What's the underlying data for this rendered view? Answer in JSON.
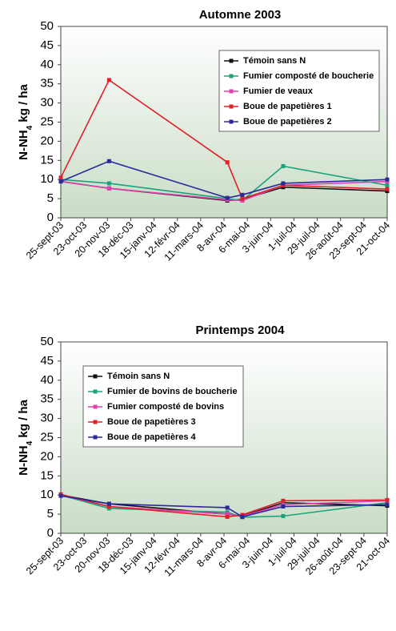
{
  "chart_data": [
    {
      "type": "line",
      "title": "Automne 2003",
      "ylabel": [
        "N-NH",
        "4",
        " kg / ha"
      ],
      "x": [
        "2003-09-25",
        "2003-11-22",
        "2004-04-12",
        "2004-04-30",
        "2004-06-18",
        "2004-10-21"
      ],
      "xlim": [
        "2003-09-25",
        "2004-10-21"
      ],
      "xticks": [
        {
          "value": "2003-09-25",
          "label": "25-sept-03"
        },
        {
          "value": "2003-10-23",
          "label": "23-oct-03"
        },
        {
          "value": "2003-11-20",
          "label": "20-nov-03"
        },
        {
          "value": "2003-12-18",
          "label": "18-déc-03"
        },
        {
          "value": "2004-01-15",
          "label": "15-janv-04"
        },
        {
          "value": "2004-02-12",
          "label": "12-févr-04"
        },
        {
          "value": "2004-03-11",
          "label": "11-mars-04"
        },
        {
          "value": "2004-04-08",
          "label": "8-avr-04"
        },
        {
          "value": "2004-05-06",
          "label": "6-mai-04"
        },
        {
          "value": "2004-06-03",
          "label": "3-juin-04"
        },
        {
          "value": "2004-07-01",
          "label": "1-juil-04"
        },
        {
          "value": "2004-07-29",
          "label": "29-juil-04"
        },
        {
          "value": "2004-08-26",
          "label": "26-août-04"
        },
        {
          "value": "2004-09-23",
          "label": "23-sept-04"
        },
        {
          "value": "2004-10-21",
          "label": "21-oct-04"
        }
      ],
      "ylim": [
        0,
        50
      ],
      "yticks": [
        0,
        5,
        10,
        15,
        20,
        25,
        30,
        35,
        40,
        45,
        50
      ],
      "legend": "upper right",
      "series": [
        {
          "name": "Témoin sans N",
          "color": "#111111",
          "values": [
            9.5,
            7.7,
            4.5,
            4.8,
            8,
            7
          ]
        },
        {
          "name": "Fumier composté de boucherie",
          "color": "#1aa37a",
          "values": [
            10,
            9,
            5,
            4.5,
            13.5,
            8.5
          ]
        },
        {
          "name": "Fumier de veaux",
          "color": "#e040b0",
          "values": [
            9.5,
            7.7,
            4.7,
            4.5,
            8.5,
            9.5
          ]
        },
        {
          "name": "Boue de papetières 1",
          "color": "#e0202a",
          "values": [
            10.5,
            36,
            14.5,
            5,
            8.5,
            7.5
          ]
        },
        {
          "name": "Boue de papetières 2",
          "color": "#2a2a9a",
          "values": [
            9.5,
            14.8,
            5.2,
            6,
            9,
            10
          ]
        }
      ]
    },
    {
      "type": "line",
      "title": "Printemps 2004",
      "ylabel": [
        "N-NH",
        "4",
        " kg / ha"
      ],
      "x": [
        "2003-09-25",
        "2003-11-22",
        "2004-04-12",
        "2004-04-30",
        "2004-06-18",
        "2004-10-21"
      ],
      "xlim": [
        "2003-09-25",
        "2004-10-21"
      ],
      "xticks": [
        {
          "value": "2003-09-25",
          "label": "25-sept-03"
        },
        {
          "value": "2003-10-23",
          "label": "23-oct-03"
        },
        {
          "value": "2003-11-20",
          "label": "20-nov-03"
        },
        {
          "value": "2003-12-18",
          "label": "18-déc-03"
        },
        {
          "value": "2004-01-15",
          "label": "15-janv-04"
        },
        {
          "value": "2004-02-12",
          "label": "12-févr-04"
        },
        {
          "value": "2004-03-11",
          "label": "11-mars-04"
        },
        {
          "value": "2004-04-08",
          "label": "8-avr-04"
        },
        {
          "value": "2004-05-06",
          "label": "6-mai-04"
        },
        {
          "value": "2004-06-03",
          "label": "3-juin-04"
        },
        {
          "value": "2004-07-01",
          "label": "1-juil-04"
        },
        {
          "value": "2004-07-29",
          "label": "29-juil-04"
        },
        {
          "value": "2004-08-26",
          "label": "26-août-04"
        },
        {
          "value": "2004-09-23",
          "label": "23-sept-04"
        },
        {
          "value": "2004-10-21",
          "label": "21-oct-04"
        }
      ],
      "ylim": [
        0,
        50
      ],
      "yticks": [
        0,
        5,
        10,
        15,
        20,
        25,
        30,
        35,
        40,
        45,
        50
      ],
      "legend": "upper left",
      "series": [
        {
          "name": "Témoin sans N",
          "color": "#111111",
          "values": [
            10,
            7.7,
            5,
            4.5,
            8,
            7.2
          ]
        },
        {
          "name": "Fumier de bovins de boucherie",
          "color": "#1aa37a",
          "values": [
            10,
            6.5,
            5.5,
            4.2,
            4.5,
            8
          ]
        },
        {
          "name": "Fumier composté de bovins",
          "color": "#e040b0",
          "values": [
            10,
            7,
            5,
            4.5,
            7.5,
            8.5
          ]
        },
        {
          "name": "Boue de papetières 3",
          "color": "#e0202a",
          "values": [
            10.2,
            7,
            4.3,
            4.8,
            8.5,
            8.7
          ]
        },
        {
          "name": "Boue de papetières 4",
          "color": "#2a2a9a",
          "values": [
            9.8,
            7.7,
            6.7,
            4.3,
            7,
            7.5
          ]
        }
      ]
    }
  ]
}
